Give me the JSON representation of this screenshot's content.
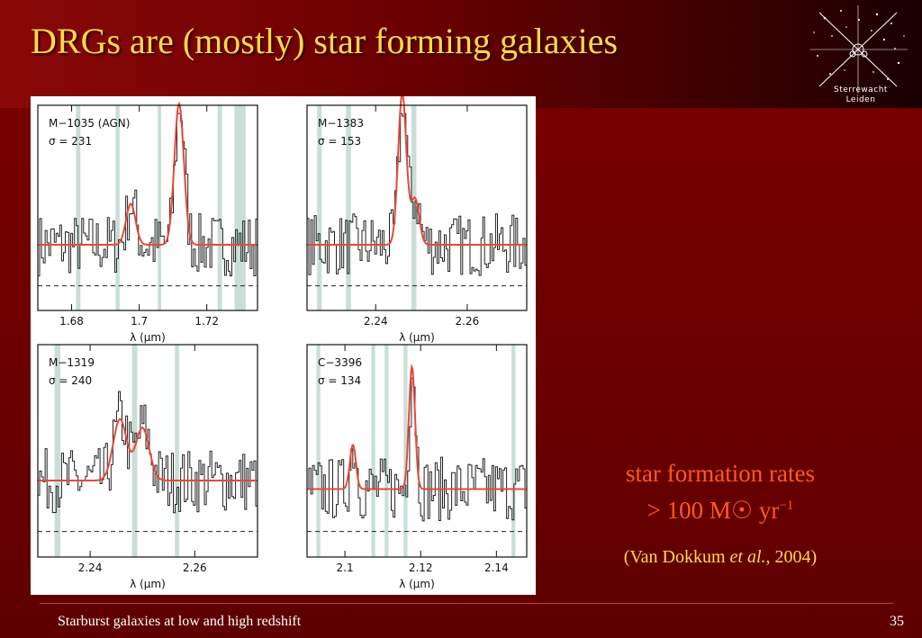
{
  "slide": {
    "title": "DRGs are (mostly) star forming galaxies",
    "logo_text_line1": "Sterrewacht",
    "logo_text_line2": "Leiden",
    "sfr_line1": "star formation rates",
    "sfr_line2_prefix": "> 100 M",
    "sfr_sun_symbol": "☉",
    "sfr_unit": " yr",
    "sfr_exponent": "−1",
    "ref_open": "(Van Dokkum ",
    "ref_etal": "et al.",
    "ref_close": ", 2004)",
    "footer": "Starburst galaxies at low and high redshift",
    "page_number": "35"
  },
  "colors": {
    "background": "#6a0000",
    "title": "#ffd84a",
    "sfr_text": "#ff5a1a",
    "ref_text": "#ffd84a",
    "fit_line": "#e8483a",
    "sky_band": "#c9ded6"
  },
  "chart_data": [
    {
      "type": "line",
      "object": "M−1035 (AGN)",
      "sigma_label": "σ = 231",
      "xlabel": "λ (μm)",
      "xlim": [
        1.67,
        1.735
      ],
      "ticks": [
        1.68,
        1.7,
        1.72
      ],
      "tick_labels": [
        "1.68",
        "1.7",
        "1.72"
      ],
      "baseline": 0.25,
      "lines": [
        {
          "center": 1.6975,
          "amp": 0.25,
          "sigma": 0.0014
        },
        {
          "center": 1.7118,
          "amp": 0.86,
          "sigma": 0.0014
        }
      ],
      "sky_bands": [
        [
          1.6813,
          1.6826
        ],
        [
          1.693,
          1.6942
        ],
        [
          1.7055,
          1.7065
        ],
        [
          1.7232,
          1.7245
        ],
        [
          1.7282,
          1.7315
        ]
      ]
    },
    {
      "type": "line",
      "object": "M−1383",
      "sigma_label": "σ = 153",
      "xlabel": "λ (μm)",
      "xlim": [
        2.225,
        2.273
      ],
      "ticks": [
        2.24,
        2.26
      ],
      "tick_labels": [
        "2.24",
        "2.26"
      ],
      "baseline": 0.25,
      "lines": [
        {
          "center": 2.2458,
          "amp": 0.92,
          "sigma": 0.0009
        },
        {
          "center": 2.2486,
          "amp": 0.28,
          "sigma": 0.0009
        }
      ],
      "sky_bands": [
        [
          2.2272,
          2.2282
        ],
        [
          2.2335,
          2.2346
        ],
        [
          2.2478,
          2.2489
        ]
      ]
    },
    {
      "type": "line",
      "object": "M−1319",
      "sigma_label": "σ = 240",
      "xlabel": "λ (μm)",
      "xlim": [
        2.23,
        2.272
      ],
      "ticks": [
        2.24,
        2.26
      ],
      "tick_labels": [
        "2.24",
        "2.26"
      ],
      "baseline": 0.3,
      "lines": [
        {
          "center": 2.2457,
          "amp": 0.36,
          "sigma": 0.0013
        },
        {
          "center": 2.25,
          "amp": 0.31,
          "sigma": 0.0013
        }
      ],
      "sky_bands": [
        [
          2.2332,
          2.2343
        ],
        [
          2.248,
          2.249
        ],
        [
          2.2562,
          2.257
        ]
      ]
    },
    {
      "type": "line",
      "object": "C−3396",
      "sigma_label": "σ = 134",
      "xlabel": "λ (μm)",
      "xlim": [
        2.09,
        2.148
      ],
      "ticks": [
        2.1,
        2.12,
        2.14
      ],
      "tick_labels": [
        "2.1",
        "2.12",
        "2.14"
      ],
      "baseline": 0.25,
      "lines": [
        {
          "center": 2.1021,
          "amp": 0.26,
          "sigma": 0.0008
        },
        {
          "center": 2.1177,
          "amp": 0.72,
          "sigma": 0.0008
        }
      ],
      "sky_bands": [
        [
          2.0925,
          2.0935
        ],
        [
          2.107,
          2.108
        ],
        [
          2.1105,
          2.1115
        ],
        [
          2.1155,
          2.1165
        ],
        [
          2.144,
          2.145
        ]
      ]
    }
  ]
}
